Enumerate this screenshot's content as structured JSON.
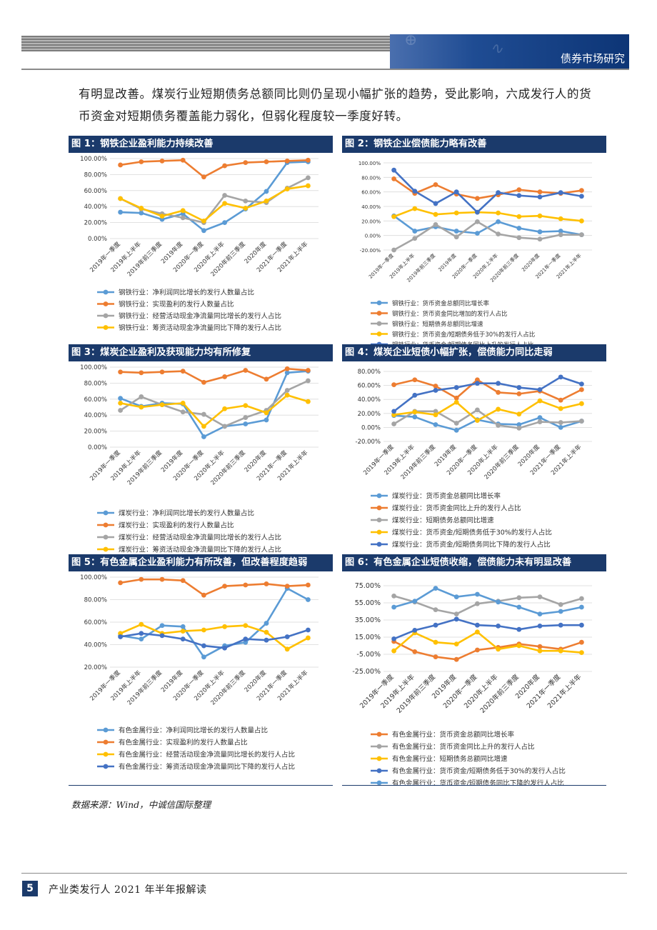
{
  "header": {
    "section_title": "债券市场研究"
  },
  "intro_text": "有明显改善。煤炭行业短期债务总额同比则仍呈现小幅扩张的趋势，受此影响，六成发行人的货币资金对短期债务覆盖能力弱化，但弱化程度较一季度好转。",
  "source": "数据来源：Wind，中诚信国际整理",
  "footer": {
    "page_number": "5",
    "doc_title": "产业类发行人 2021 年半年报解读"
  },
  "colors": {
    "blue": "#5b9bd5",
    "orange": "#ed7d31",
    "gray": "#a5a5a5",
    "yellow": "#ffc000",
    "navy": "#4472c4"
  },
  "chart_data": [
    {
      "type": "line",
      "title": "图 1：钢铁企业盈利能力持续改善",
      "categories": [
        "2019年一季度",
        "2019年上半年",
        "2019年前三季度",
        "2019年度",
        "2020年一季度",
        "2020年上半年",
        "2020年前三季度",
        "2020年度",
        "2021年一季度",
        "2021年上半年"
      ],
      "ylim": [
        0,
        100
      ],
      "y_ticks": [
        "0.00%",
        "20.00%",
        "40.00%",
        "60.00%",
        "80.00%",
        "100.00%"
      ],
      "series": [
        {
          "name": "钢铁行业：净利润同比增长的发行人数量占比",
          "color": "blue",
          "values": [
            33,
            32,
            24,
            31,
            10,
            20,
            37,
            59,
            95,
            96
          ]
        },
        {
          "name": "钢铁行业：实现盈利的发行人数量占比",
          "color": "orange",
          "values": [
            92,
            96,
            97,
            98,
            77,
            91,
            95,
            96,
            97,
            98
          ]
        },
        {
          "name": "钢铁行业：经营活动现金净流量同比增长的发行人占比",
          "color": "gray",
          "values": [
            50,
            37,
            31,
            26,
            20,
            54,
            47,
            45,
            63,
            76
          ]
        },
        {
          "name": "钢铁行业：筹资活动现金净流量同比下降的发行人占比",
          "color": "yellow",
          "values": [
            50,
            38,
            28,
            35,
            22,
            44,
            38,
            47,
            62,
            66
          ]
        }
      ]
    },
    {
      "type": "line",
      "title": "图 2：钢铁企业偿债能力略有改善",
      "categories": [
        "2019年一季度",
        "2019年上半年",
        "2019年前三季度",
        "2019年度",
        "2020年一季度",
        "2020年上半年",
        "2020年前三季度",
        "2020年度",
        "2021年一季度",
        "2021年上半年"
      ],
      "ylim": [
        -20,
        100
      ],
      "y_ticks": [
        "-20.00%",
        "0.00%",
        "20.00%",
        "40.00%",
        "60.00%",
        "80.00%",
        "100.00%"
      ],
      "series": [
        {
          "name": "钢铁行业：货币资金总额同比增长率",
          "color": "blue",
          "values": [
            27,
            6,
            12,
            6,
            3,
            19,
            10,
            5,
            6,
            1
          ]
        },
        {
          "name": "钢铁行业：货币资金同比增加的发行人占比",
          "color": "orange",
          "values": [
            78,
            58,
            70,
            57,
            51,
            56,
            63,
            60,
            58,
            62
          ]
        },
        {
          "name": "钢铁行业：短期债务总额同比增速",
          "color": "gray",
          "values": [
            -20,
            -4,
            15,
            -2,
            19,
            2,
            -3,
            -5,
            1,
            1
          ]
        },
        {
          "name": "钢铁行业：货币资金/短期债务低于30%的发行人占比",
          "color": "yellow",
          "values": [
            26,
            37,
            29,
            31,
            32,
            31,
            26,
            27,
            23,
            20
          ]
        },
        {
          "name": "钢铁行业：货币资金/短期债务同比上升的发行人占比",
          "color": "navy",
          "values": [
            90,
            61,
            44,
            60,
            32,
            59,
            55,
            53,
            59,
            54
          ]
        }
      ]
    },
    {
      "type": "line",
      "title": "图 3：煤炭企业盈利及获现能力均有所修复",
      "categories": [
        "2019年一季度",
        "2019年上半年",
        "2019年前三季度",
        "2019年度",
        "2020年一季度",
        "2020年上半年",
        "2020年前三季度",
        "2020年度",
        "2021年一季度",
        "2021年上半年"
      ],
      "ylim": [
        0,
        100
      ],
      "y_ticks": [
        "0.00%",
        "20.00%",
        "40.00%",
        "60.00%",
        "80.00%",
        "100.00%"
      ],
      "series": [
        {
          "name": "煤炭行业：净利润同比增长的发行人数量占比",
          "color": "blue",
          "values": [
            61,
            51,
            55,
            54,
            13,
            26,
            29,
            34,
            93,
            95
          ]
        },
        {
          "name": "煤炭行业：实现盈利的发行人数量占比",
          "color": "orange",
          "values": [
            94,
            93,
            94,
            95,
            81,
            88,
            96,
            85,
            98,
            96
          ]
        },
        {
          "name": "煤炭行业：经营活动现金净流量同比增长的发行人占比",
          "color": "gray",
          "values": [
            46,
            63,
            53,
            44,
            41,
            26,
            37,
            46,
            71,
            83
          ]
        },
        {
          "name": "煤炭行业：筹资活动现金净流量同比下降的发行人占比",
          "color": "yellow",
          "values": [
            55,
            50,
            53,
            55,
            26,
            48,
            52,
            43,
            65,
            57
          ]
        }
      ]
    },
    {
      "type": "line",
      "title": "图 4：煤炭企业短债小幅扩张，偿债能力同比走弱",
      "categories": [
        "2019年一季度",
        "2019年上半年",
        "2019年前三季度",
        "2019年度",
        "2020年一季度",
        "2020年上半年",
        "2020年前三季度",
        "2020年度",
        "2021年一季度",
        "2021年上半年"
      ],
      "ylim": [
        -20,
        80
      ],
      "y_ticks": [
        "-20.00%",
        "0.00%",
        "20.00%",
        "40.00%",
        "60.00%",
        "80.00%"
      ],
      "series": [
        {
          "name": "煤炭行业：货币资金总额同比增长率",
          "color": "blue",
          "values": [
            17,
            15,
            4,
            -4,
            11,
            5,
            4,
            14,
            0,
            9
          ]
        },
        {
          "name": "煤炭行业：货币资金同比上升的发行人占比",
          "color": "orange",
          "values": [
            61,
            68,
            59,
            42,
            68,
            50,
            48,
            52,
            39,
            54
          ]
        },
        {
          "name": "煤炭行业：短期债务总额同比增速",
          "color": "gray",
          "values": [
            5,
            23,
            23,
            6,
            25,
            3,
            -1,
            8,
            7,
            9
          ]
        },
        {
          "name": "煤炭行业：货币资金/短期债务低于30%的发行人占比",
          "color": "yellow",
          "values": [
            18,
            22,
            18,
            36,
            10,
            26,
            19,
            38,
            27,
            34
          ]
        },
        {
          "name": "煤炭行业：货币资金/短期债务同比下降的发行人占比",
          "color": "navy",
          "values": [
            23,
            46,
            53,
            57,
            63,
            63,
            57,
            54,
            72,
            62
          ]
        }
      ]
    },
    {
      "type": "line",
      "title": "图 5：有色金属企业盈利能力有所改善，但改善程度趋弱",
      "categories": [
        "2019年一季度",
        "2019年上半年",
        "2019年前三季度",
        "2019年度",
        "2020年一季度",
        "2020年上半年",
        "2020年前三季度",
        "2020年度",
        "2021年一季度",
        "2021年上半年"
      ],
      "ylim": [
        20,
        100
      ],
      "y_ticks": [
        "20.00%",
        "40.00%",
        "60.00%",
        "80.00%",
        "100.00%"
      ],
      "series": [
        {
          "name": "有色金属行业：净利润同比增长的发行人数量占比",
          "color": "blue",
          "values": [
            48,
            45,
            57,
            56,
            29,
            39,
            42,
            59,
            90,
            80
          ]
        },
        {
          "name": "有色金属行业：实现盈利的发行人数量占比",
          "color": "orange",
          "values": [
            95,
            98,
            98,
            97,
            84,
            92,
            93,
            94,
            92,
            93
          ]
        },
        {
          "name": "有色金属行业：经营活动现金净流量同比增长的发行人占比",
          "color": "yellow",
          "values": [
            50,
            58,
            50,
            52,
            53,
            56,
            57,
            51,
            36,
            46
          ]
        },
        {
          "name": "有色金属行业：筹资活动现金净流量同比下降的发行人占比",
          "color": "navy",
          "values": [
            47,
            50,
            48,
            45,
            39,
            37,
            45,
            44,
            47,
            53
          ]
        }
      ]
    },
    {
      "type": "line",
      "title": "图 6：有色金属企业短债收缩，偿债能力未有明显改善",
      "categories": [
        "2019年一季度",
        "2019年上半年",
        "2019年前三季度",
        "2019年度",
        "2020年一季度",
        "2020年上半年",
        "2020年前三季度",
        "2020年度",
        "2021年一季度",
        "2021年上半年"
      ],
      "ylim": [
        -25,
        75
      ],
      "y_ticks": [
        "-25.00%",
        "-5.00%",
        "15.00%",
        "35.00%",
        "55.00%",
        "75.00%"
      ],
      "series": [
        {
          "name": "有色金属行业：货币资金总额同比增长率",
          "color": "orange",
          "values": [
            10,
            -2,
            -8,
            -11,
            0,
            3,
            7,
            4,
            1,
            9
          ]
        },
        {
          "name": "有色金属行业：货币资金同比上升的发行人占比",
          "color": "gray",
          "values": [
            63,
            56,
            47,
            42,
            54,
            57,
            61,
            62,
            53,
            60
          ]
        },
        {
          "name": "有色金属行业：短期债务总额同比增速",
          "color": "yellow",
          "values": [
            -1,
            20,
            9,
            7,
            21,
            1,
            5,
            -1,
            -1,
            -3
          ]
        },
        {
          "name": "有色金属行业：货币资金/短期债务低于30%的发行人占比",
          "color": "navy",
          "values": [
            13,
            23,
            29,
            36,
            29,
            28,
            24,
            28,
            29,
            29
          ]
        },
        {
          "name": "有色金属行业：货币资金/短期债务同比下降的发行人占比",
          "color": "blue",
          "values": [
            50,
            57,
            72,
            62,
            65,
            56,
            50,
            42,
            45,
            50
          ]
        }
      ]
    }
  ]
}
